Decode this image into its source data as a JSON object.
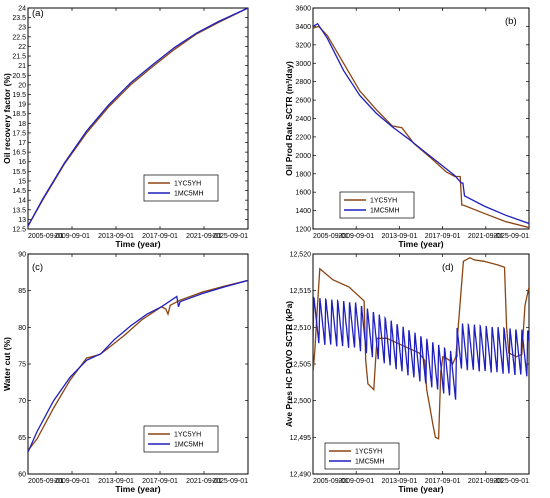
{
  "colors": {
    "1YC5YH": "#8B4513",
    "1MC5MH": "#1f1fbf"
  },
  "chart_data": [
    {
      "type": "line",
      "panel_label": "(a)",
      "xlabel": "Time (year)",
      "ylabel": "Oil recovery factor (%)",
      "xlim": [
        2005.67,
        2025.67
      ],
      "ylim": [
        12.5,
        24
      ],
      "xticks": [
        2005.67,
        2009.67,
        2013.67,
        2017.67,
        2021.67,
        2025.67
      ],
      "xtick_labels": [
        "2005-09-01",
        "2009-09-01",
        "2013-09-01",
        "2017-09-01",
        "2021-09-01",
        "2025-09-01"
      ],
      "yticks": [
        12.5,
        13,
        13.5,
        14,
        14.5,
        15,
        15.5,
        16,
        16.5,
        17,
        17.5,
        18,
        18.5,
        19,
        19.5,
        20,
        20.5,
        21,
        21.5,
        22,
        22.5,
        23,
        23.5,
        24
      ],
      "ytick_labels": [
        "12.5",
        "13",
        "13.5",
        "14",
        "14.5",
        "15",
        "15.5",
        "16",
        "16.5",
        "17",
        "17.5",
        "18",
        "18.5",
        "19",
        "19.5",
        "20",
        "20.5",
        "21",
        "21.5",
        "22",
        "22.5",
        "23",
        "23.5",
        "24"
      ],
      "legend_position": "bottom-right",
      "series": [
        {
          "name": "1YC5YH",
          "color_key": "1YC5YH",
          "x": [
            2005.67,
            2007,
            2009,
            2011,
            2013,
            2015,
            2017,
            2019,
            2021,
            2023,
            2025.67
          ],
          "y": [
            12.65,
            14.0,
            15.9,
            17.5,
            18.85,
            20.0,
            20.95,
            21.85,
            22.65,
            23.25,
            24.0
          ]
        },
        {
          "name": "1MC5MH",
          "color_key": "1MC5MH",
          "x": [
            2005.67,
            2007,
            2009,
            2011,
            2013,
            2015,
            2017,
            2019,
            2021,
            2023,
            2025.67
          ],
          "y": [
            12.65,
            14.05,
            15.95,
            17.6,
            18.95,
            20.1,
            21.05,
            21.95,
            22.7,
            23.3,
            24.0
          ]
        }
      ]
    },
    {
      "type": "line",
      "panel_label": "(b)",
      "xlabel": "Time (year)",
      "ylabel": "Oil Prod Rate SCTR (m³/day)",
      "xlim": [
        2005.67,
        2025.67
      ],
      "ylim": [
        1200,
        3600
      ],
      "xticks": [
        2005.67,
        2009.67,
        2013.67,
        2017.67,
        2021.67,
        2025.67
      ],
      "xtick_labels": [
        "2005-09-01",
        "2009-09-01",
        "2013-09-01",
        "2017-09-01",
        "2021-09-01",
        "2025-09-01"
      ],
      "yticks": [
        1200,
        1400,
        1600,
        1800,
        2000,
        2200,
        2400,
        2600,
        2800,
        3000,
        3200,
        3400,
        3600
      ],
      "ytick_labels": [
        "1200",
        "1400",
        "1600",
        "1800",
        "2000",
        "2200",
        "2400",
        "2600",
        "2800",
        "3000",
        "3200",
        "3400",
        "3600"
      ],
      "legend_position": "bottom-left",
      "series": [
        {
          "name": "1YC5YH",
          "color_key": "1YC5YH",
          "x": [
            2005.67,
            2006.2,
            2007,
            2008.5,
            2010,
            2011.5,
            2013,
            2013.9,
            2015,
            2016.5,
            2018,
            2018.8,
            2019.3,
            2019.45,
            2019.6,
            2021.5,
            2023.5,
            2025.67
          ],
          "y": [
            3380,
            3400,
            3300,
            3000,
            2700,
            2500,
            2320,
            2300,
            2130,
            1980,
            1820,
            1770,
            1770,
            1460,
            1460,
            1370,
            1280,
            1215
          ]
        },
        {
          "name": "1MC5MH",
          "color_key": "1MC5MH",
          "x": [
            2005.67,
            2006.1,
            2007,
            2008.5,
            2010,
            2011.5,
            2013,
            2014.5,
            2016,
            2017.5,
            2018.8,
            2019.4,
            2019.55,
            2019.7,
            2021.5,
            2023.5,
            2025.67
          ],
          "y": [
            3400,
            3430,
            3270,
            2920,
            2650,
            2460,
            2310,
            2180,
            2040,
            1900,
            1780,
            1700,
            1700,
            1560,
            1450,
            1350,
            1260
          ]
        }
      ]
    },
    {
      "type": "line",
      "panel_label": "(c)",
      "xlabel": "Time (year)",
      "ylabel": "Water cut (%)",
      "xlim": [
        2005.67,
        2025.67
      ],
      "ylim": [
        60,
        90
      ],
      "xticks": [
        2005.67,
        2009.67,
        2013.67,
        2017.67,
        2021.67,
        2025.67
      ],
      "xtick_labels": [
        "2005-09-01",
        "2009-09-01",
        "2013-09-01",
        "2017-09-01",
        "2021-09-01",
        "2025-09-01"
      ],
      "yticks": [
        60,
        65,
        70,
        75,
        80,
        85,
        90
      ],
      "ytick_labels": [
        "60",
        "65",
        "70",
        "75",
        "80",
        "85",
        "90"
      ],
      "legend_position": "bottom-right",
      "series": [
        {
          "name": "1YC5YH",
          "color_key": "1YC5YH",
          "x": [
            2005.67,
            2006.5,
            2008,
            2009.5,
            2011,
            2012.2,
            2013,
            2014.5,
            2016,
            2017.8,
            2018.2,
            2018.4,
            2018.6,
            2019.5,
            2021.5,
            2023.5,
            2025.67
          ],
          "y": [
            63.2,
            64.8,
            69.0,
            72.8,
            75.8,
            76.3,
            77.2,
            79.0,
            81.0,
            82.8,
            82.5,
            81.8,
            83.0,
            83.7,
            84.8,
            85.6,
            86.4
          ]
        },
        {
          "name": "1MC5MH",
          "color_key": "1MC5MH",
          "x": [
            2005.67,
            2006.5,
            2008,
            2009.5,
            2011,
            2012.3,
            2013.5,
            2015,
            2016.5,
            2017.8,
            2019.2,
            2019.35,
            2019.5,
            2021.5,
            2023.5,
            2025.67
          ],
          "y": [
            63.0,
            65.8,
            70.0,
            73.2,
            75.5,
            76.4,
            78.3,
            80.2,
            81.8,
            82.8,
            84.2,
            82.8,
            83.5,
            84.6,
            85.5,
            86.4
          ]
        }
      ]
    },
    {
      "type": "line",
      "panel_label": "(d)",
      "xlabel": "Time (year)",
      "ylabel": "Ave Pres HC POVO SCTR (kPa)",
      "xlim": [
        2005.67,
        2025.67
      ],
      "ylim": [
        12490,
        12520
      ],
      "xticks": [
        2005.67,
        2009.67,
        2013.67,
        2017.67,
        2021.67,
        2025.67
      ],
      "xtick_labels": [
        "2005-09-01",
        "2009-09-01",
        "2013-09-01",
        "2017-09-01",
        "2021-09-01",
        "2025-09-01"
      ],
      "yticks": [
        12490,
        12495,
        12500,
        12505,
        12510,
        12515,
        12520
      ],
      "ytick_labels": [
        "12,490",
        "12,495",
        "12,500",
        "12,505",
        "12,510",
        "12,515",
        "12,520"
      ],
      "legend_position": "bottom-left",
      "series": [
        {
          "name": "1YC5YH",
          "color_key": "1YC5YH",
          "x": [
            2005.67,
            2005.85,
            2006.0,
            2006.15,
            2006.3,
            2007.5,
            2009,
            2010.4,
            2010.55,
            2010.75,
            2011.3,
            2011.4,
            2011.6,
            2012.5,
            2014.0,
            2015.5,
            2016.0,
            2016.2,
            2016.5,
            2016.8,
            2017.0,
            2017.3,
            2017.5,
            2017.7,
            2018.0,
            2018.3,
            2018.6,
            2018.9,
            2019.6,
            2020.2,
            2020.6,
            2021.5,
            2022.8,
            2023.4,
            2023.6,
            2023.8,
            2024.5,
            2025.0,
            2025.3,
            2025.67
          ],
          "y": [
            12503.8,
            12507,
            12511,
            12514.5,
            12518,
            12516.5,
            12515.5,
            12513.6,
            12505.5,
            12502.3,
            12501.5,
            12504,
            12508.5,
            12508.5,
            12507.5,
            12506.5,
            12505.5,
            12501.5,
            12499,
            12496.5,
            12495,
            12494.8,
            12504,
            12506,
            12505.8,
            12505.5,
            12505,
            12506,
            12519,
            12519.5,
            12519.2,
            12519,
            12518.5,
            12518.2,
            12510,
            12506.5,
            12506,
            12506.3,
            12513,
            12515.5
          ]
        },
        {
          "name": "1MC5MH",
          "color_key": "1MC5MH",
          "x": [
            2005.67,
            2025.67
          ],
          "y": [
            12505.5,
            12505.5
          ]
        }
      ]
    }
  ]
}
